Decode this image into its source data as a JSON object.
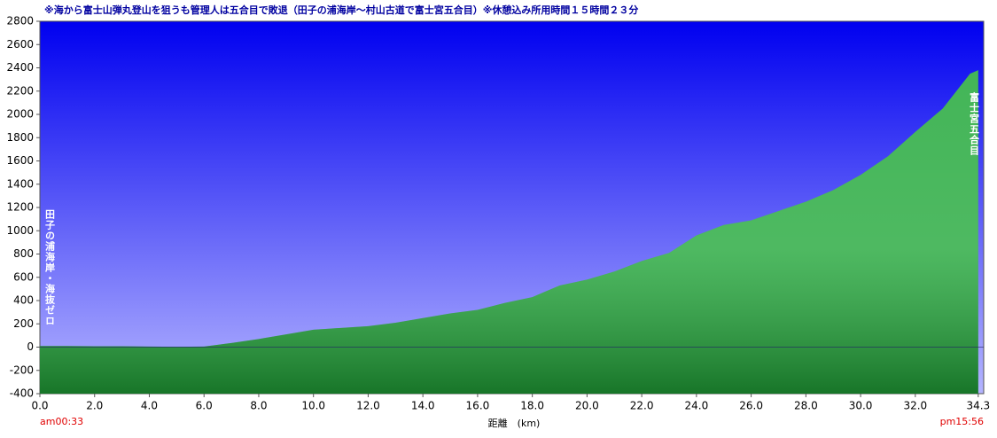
{
  "chart_data": {
    "type": "area",
    "title": "※海から富士山弾丸登山を狙うも管理人は五合目で敗退（田子の浦海岸～村山古道で富士宮五合目）※休憩込み所用時間１５時間２３分",
    "x_label": "距離　(km)",
    "start_label": "田子の浦海岸・海抜ゼロ",
    "end_label": "富士宮五合目",
    "start_time": "am00:33",
    "end_time": "pm15:56",
    "x": [
      0,
      1,
      2,
      3,
      4,
      5,
      6,
      6.5,
      7,
      8,
      9,
      10,
      11,
      12,
      13,
      14,
      15,
      16,
      17,
      18,
      18.5,
      19,
      20,
      21,
      22,
      23,
      24,
      25,
      26,
      27,
      28,
      29,
      30,
      31,
      32,
      33,
      34,
      34.3
    ],
    "values": [
      10,
      10,
      8,
      8,
      5,
      3,
      5,
      20,
      35,
      70,
      110,
      150,
      165,
      180,
      210,
      250,
      290,
      320,
      380,
      430,
      480,
      530,
      580,
      650,
      740,
      810,
      960,
      1050,
      1090,
      1170,
      1250,
      1350,
      1480,
      1640,
      1850,
      2050,
      2350,
      2380
    ],
    "color": "#22a83a",
    "xlim": [
      0,
      34.5
    ],
    "xticks": [
      {
        "value": 0,
        "label": "0.0"
      },
      {
        "value": 2,
        "label": "2.0"
      },
      {
        "value": 4,
        "label": "4.0"
      },
      {
        "value": 6,
        "label": "6.0"
      },
      {
        "value": 8,
        "label": "8.0"
      },
      {
        "value": 10,
        "label": "10.0"
      },
      {
        "value": 12,
        "label": "12.0"
      },
      {
        "value": 14,
        "label": "14.0"
      },
      {
        "value": 16,
        "label": "16.0"
      },
      {
        "value": 18,
        "label": "18.0"
      },
      {
        "value": 20,
        "label": "20.0"
      },
      {
        "value": 22,
        "label": "22.0"
      },
      {
        "value": 24,
        "label": "24.0"
      },
      {
        "value": 26,
        "label": "26.0"
      },
      {
        "value": 28,
        "label": "28.0"
      },
      {
        "value": 30,
        "label": "30.0"
      },
      {
        "value": 32,
        "label": "32.0"
      },
      34.3
    ],
    "ylim": [
      -400,
      2800
    ],
    "yticks": [
      -400,
      -200,
      0,
      200,
      400,
      600,
      800,
      1000,
      1200,
      1400,
      1600,
      1800,
      2000,
      2200,
      2400,
      2600,
      2800
    ]
  }
}
